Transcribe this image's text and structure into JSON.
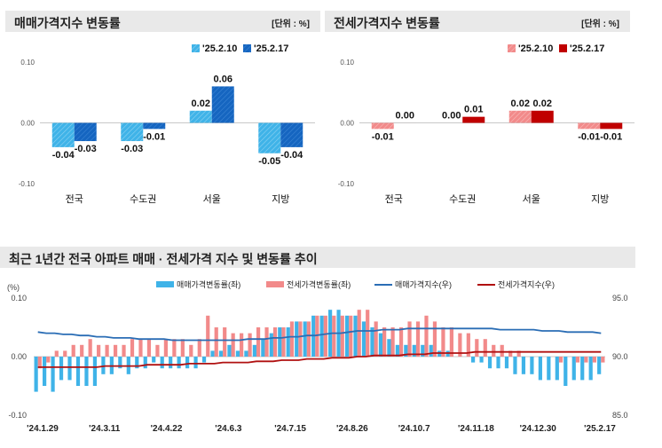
{
  "panel1": {
    "title": "매매가격지수 변동률",
    "unit": "[단위 : %]"
  },
  "panel2": {
    "title": "전세가격지수 변동률",
    "unit": "[단위 : %]"
  },
  "panel3": {
    "title": "최근 1년간 전국 아파트 매매 · 전세가격 지수 및 변동률 추이"
  },
  "colors": {
    "sale_light": "#3fb3e8",
    "sale_dark": "#1565c0",
    "rent_light": "#f28a8a",
    "rent_dark": "#c00000",
    "sale_line": "#2a6db5",
    "rent_line": "#b01010",
    "header_bg": "#e9e9e9"
  },
  "chart_data": [
    {
      "type": "bar",
      "title": "매매가격지수 변동률",
      "categories": [
        "전국",
        "수도권",
        "서울",
        "지방"
      ],
      "series": [
        {
          "name": "'25.2.10",
          "values": [
            -0.04,
            -0.03,
            0.02,
            -0.05
          ],
          "labels": [
            "-0.04",
            "-0.03",
            "0.02",
            "-0.05"
          ]
        },
        {
          "name": "'25.2.17",
          "values": [
            -0.03,
            -0.01,
            0.06,
            -0.04
          ],
          "labels": [
            "-0.03",
            "-0.01",
            "0.06",
            "-0.04"
          ]
        }
      ],
      "yticks": [
        "0.10",
        "0.00",
        "-0.10"
      ],
      "ylim": [
        -0.1,
        0.1
      ]
    },
    {
      "type": "bar",
      "title": "전세가격지수 변동률",
      "categories": [
        "전국",
        "수도권",
        "서울",
        "지방"
      ],
      "series": [
        {
          "name": "'25.2.10",
          "values": [
            -0.01,
            0.0,
            0.02,
            -0.01
          ],
          "labels": [
            "-0.01",
            "0.00",
            "0.02",
            "-0.01"
          ]
        },
        {
          "name": "'25.2.17",
          "values": [
            0.0,
            0.01,
            0.02,
            -0.01
          ],
          "labels": [
            "0.00",
            "0.01",
            "0.02",
            "-0.01"
          ]
        }
      ],
      "yticks": [
        "0.10",
        "0.00",
        "-0.10"
      ],
      "ylim": [
        -0.1,
        0.1
      ]
    },
    {
      "type": "bar",
      "title": "최근 1년간 전국 아파트 매매 · 전세가격 지수 및 변동률 추이",
      "ylabel": "(%)",
      "yticks_left": [
        "0.10",
        "0.00",
        "-0.10"
      ],
      "yticks_right": [
        "95.0",
        "90.0",
        "85.0"
      ],
      "ylim_left": [
        -0.1,
        0.1
      ],
      "ylim_right": [
        85,
        95
      ],
      "x_ticks": [
        "'24.1.29",
        "'24.3.11",
        "'24.4.22",
        "'24.6.3",
        "'24.7.15",
        "'24.8.26",
        "'24.10.7",
        "'24.11.18",
        "'24.12.30",
        "'25.2.17"
      ],
      "series": [
        {
          "name": "매매가격변동률(좌)",
          "type": "bar",
          "values": [
            -0.06,
            -0.05,
            -0.06,
            -0.04,
            -0.04,
            -0.05,
            -0.05,
            -0.05,
            -0.03,
            -0.03,
            -0.02,
            -0.03,
            -0.02,
            -0.02,
            -0.01,
            -0.02,
            -0.02,
            -0.02,
            -0.02,
            -0.02,
            -0.01,
            0.01,
            0.01,
            0.02,
            0.01,
            0.01,
            0.02,
            0.03,
            0.04,
            0.05,
            0.05,
            0.06,
            0.06,
            0.07,
            0.07,
            0.08,
            0.08,
            0.07,
            0.07,
            0.06,
            0.05,
            0.04,
            0.03,
            0.02,
            0.02,
            0.02,
            0.02,
            0.02,
            0.01,
            0.01,
            0.0,
            0.0,
            -0.01,
            -0.01,
            -0.02,
            -0.02,
            -0.02,
            -0.03,
            -0.03,
            -0.03,
            -0.04,
            -0.04,
            -0.04,
            -0.05,
            -0.04,
            -0.04,
            -0.04,
            -0.03
          ]
        },
        {
          "name": "전세가격변동률(좌)",
          "type": "bar",
          "values": [
            -0.02,
            -0.01,
            0.01,
            0.01,
            0.02,
            0.02,
            0.03,
            0.02,
            0.02,
            0.02,
            0.02,
            0.03,
            0.03,
            0.03,
            0.02,
            0.03,
            0.03,
            0.03,
            0.02,
            0.03,
            0.07,
            0.05,
            0.05,
            0.04,
            0.04,
            0.04,
            0.05,
            0.05,
            0.05,
            0.05,
            0.06,
            0.06,
            0.06,
            0.07,
            0.07,
            0.07,
            0.07,
            0.07,
            0.08,
            0.08,
            0.06,
            0.05,
            0.05,
            0.05,
            0.06,
            0.06,
            0.07,
            0.06,
            0.05,
            0.05,
            0.04,
            0.04,
            0.03,
            0.03,
            0.02,
            0.02,
            0.01,
            0.01,
            0.0,
            0.0,
            0.0,
            0.0,
            -0.01,
            0.0,
            -0.01,
            -0.01,
            -0.01,
            -0.01
          ]
        },
        {
          "name": "매매가격지수(우)",
          "type": "line",
          "values": [
            92.1,
            92.0,
            92.0,
            91.9,
            91.9,
            91.8,
            91.8,
            91.7,
            91.7,
            91.6,
            91.6,
            91.6,
            91.5,
            91.5,
            91.5,
            91.5,
            91.4,
            91.4,
            91.4,
            91.4,
            91.4,
            91.4,
            91.4,
            91.4,
            91.4,
            91.5,
            91.5,
            91.5,
            91.6,
            91.6,
            91.7,
            91.7,
            91.8,
            91.8,
            91.9,
            92.0,
            92.0,
            92.1,
            92.2,
            92.2,
            92.2,
            92.3,
            92.3,
            92.3,
            92.4,
            92.4,
            92.4,
            92.4,
            92.4,
            92.4,
            92.4,
            92.4,
            92.4,
            92.4,
            92.4,
            92.3,
            92.3,
            92.3,
            92.3,
            92.3,
            92.2,
            92.2,
            92.2,
            92.1,
            92.1,
            92.1,
            92.1,
            92.0
          ]
        },
        {
          "name": "전세가격지수(우)",
          "type": "line",
          "values": [
            89.1,
            89.1,
            89.1,
            89.1,
            89.1,
            89.1,
            89.1,
            89.1,
            89.2,
            89.2,
            89.2,
            89.2,
            89.2,
            89.3,
            89.3,
            89.3,
            89.3,
            89.3,
            89.4,
            89.4,
            89.4,
            89.4,
            89.5,
            89.5,
            89.5,
            89.5,
            89.6,
            89.6,
            89.6,
            89.7,
            89.7,
            89.7,
            89.8,
            89.8,
            89.8,
            89.9,
            89.9,
            89.9,
            90.0,
            90.0,
            90.1,
            90.1,
            90.1,
            90.1,
            90.2,
            90.2,
            90.2,
            90.3,
            90.3,
            90.3,
            90.3,
            90.3,
            90.4,
            90.4,
            90.4,
            90.4,
            90.4,
            90.4,
            90.4,
            90.4,
            90.4,
            90.4,
            90.4,
            90.4,
            90.4,
            90.4,
            90.4,
            90.4
          ]
        }
      ]
    }
  ]
}
